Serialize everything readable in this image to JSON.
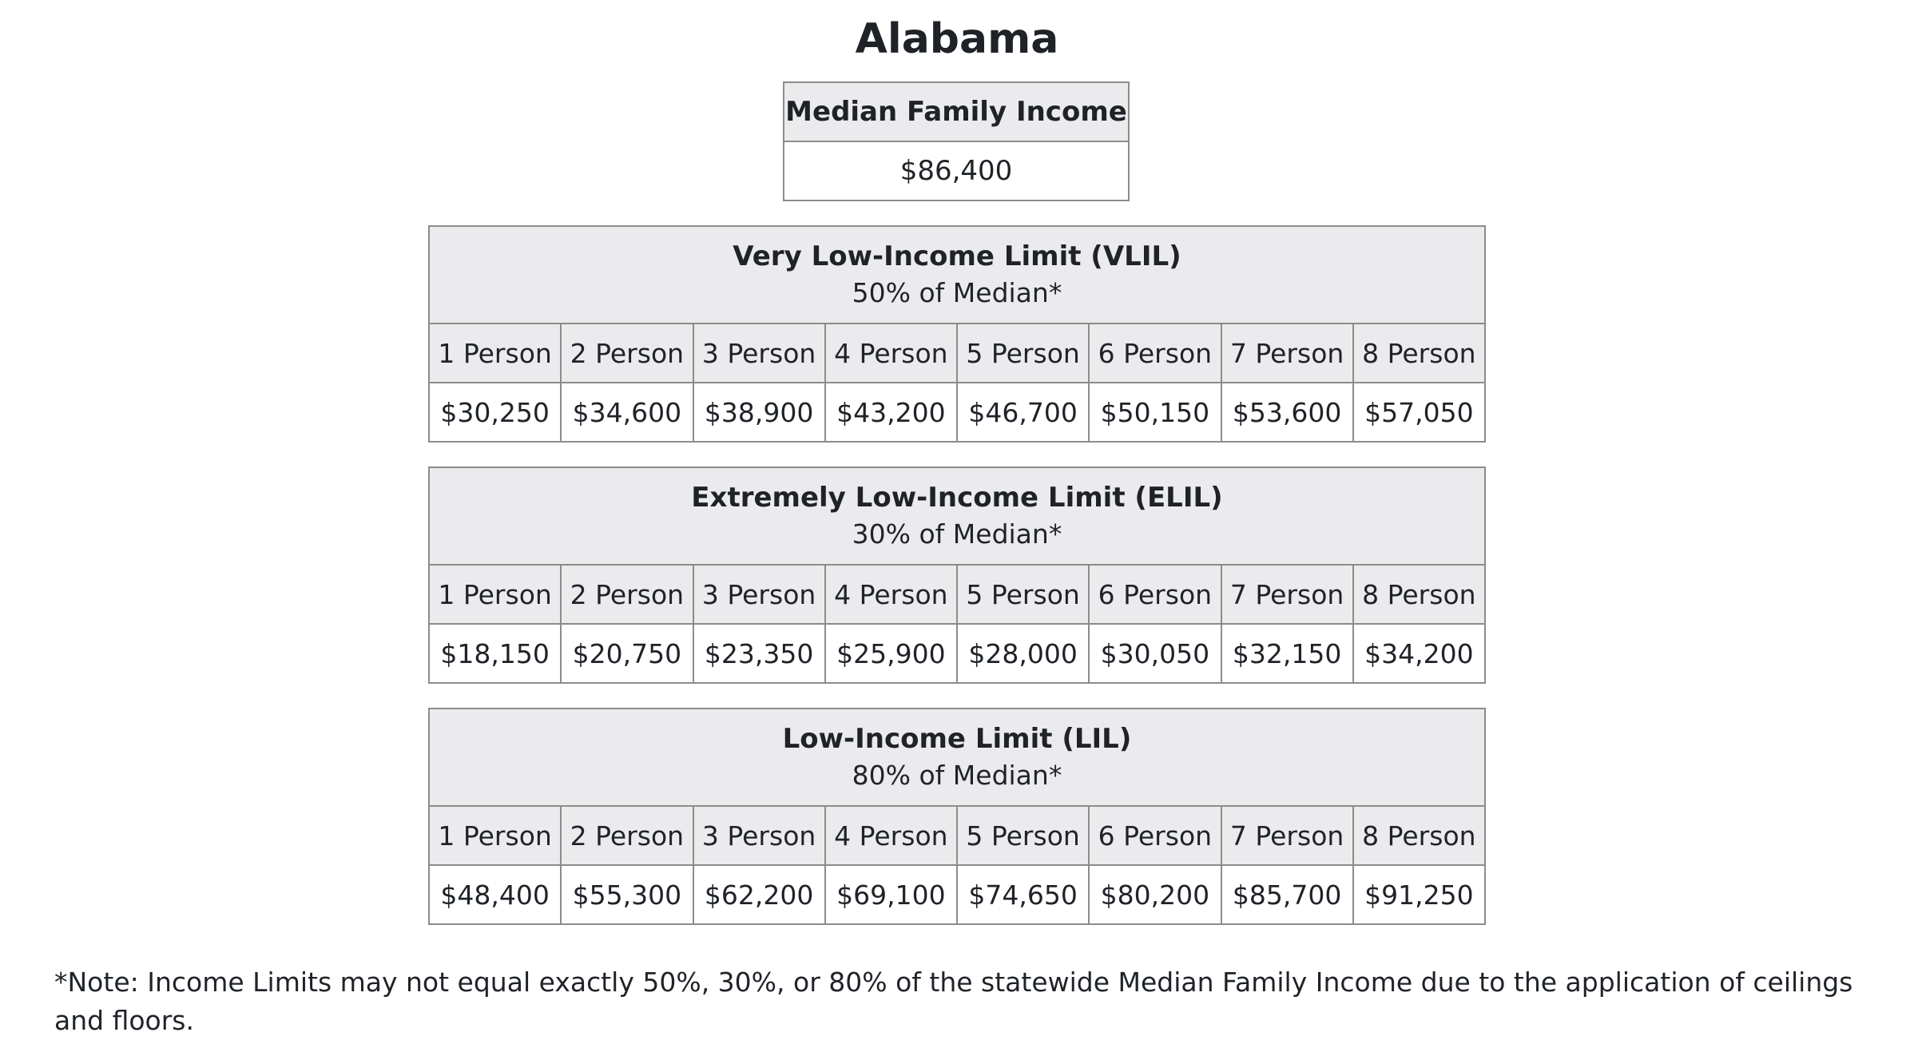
{
  "title": "Alabama",
  "median_family_income": {
    "header": "Median Family Income",
    "value": "$86,400"
  },
  "tables": {
    "vlil": {
      "title": "Very Low-Income Limit (VLIL)",
      "subtitle": "50% of Median*",
      "labels": [
        "1 Person",
        "2 Person",
        "3 Person",
        "4 Person",
        "5 Person",
        "6 Person",
        "7 Person",
        "8 Person"
      ],
      "values": [
        "$30,250",
        "$34,600",
        "$38,900",
        "$43,200",
        "$46,700",
        "$50,150",
        "$53,600",
        "$57,050"
      ]
    },
    "elil": {
      "title": "Extremely Low-Income Limit (ELIL)",
      "subtitle": "30% of Median*",
      "labels": [
        "1 Person",
        "2 Person",
        "3 Person",
        "4 Person",
        "5 Person",
        "6 Person",
        "7 Person",
        "8 Person"
      ],
      "values": [
        "$18,150",
        "$20,750",
        "$23,350",
        "$25,900",
        "$28,000",
        "$30,050",
        "$32,150",
        "$34,200"
      ]
    },
    "lil": {
      "title": "Low-Income Limit (LIL)",
      "subtitle": "80% of Median*",
      "labels": [
        "1 Person",
        "2 Person",
        "3 Person",
        "4 Person",
        "5 Person",
        "6 Person",
        "7 Person",
        "8 Person"
      ],
      "values": [
        "$48,400",
        "$55,300",
        "$62,200",
        "$69,100",
        "$74,650",
        "$80,200",
        "$85,700",
        "$91,250"
      ]
    }
  },
  "footnote": "*Note: Income Limits may not equal exactly 50%, 30%, or 80% of the statewide Median Family Income due to the application of ceilings and floors."
}
